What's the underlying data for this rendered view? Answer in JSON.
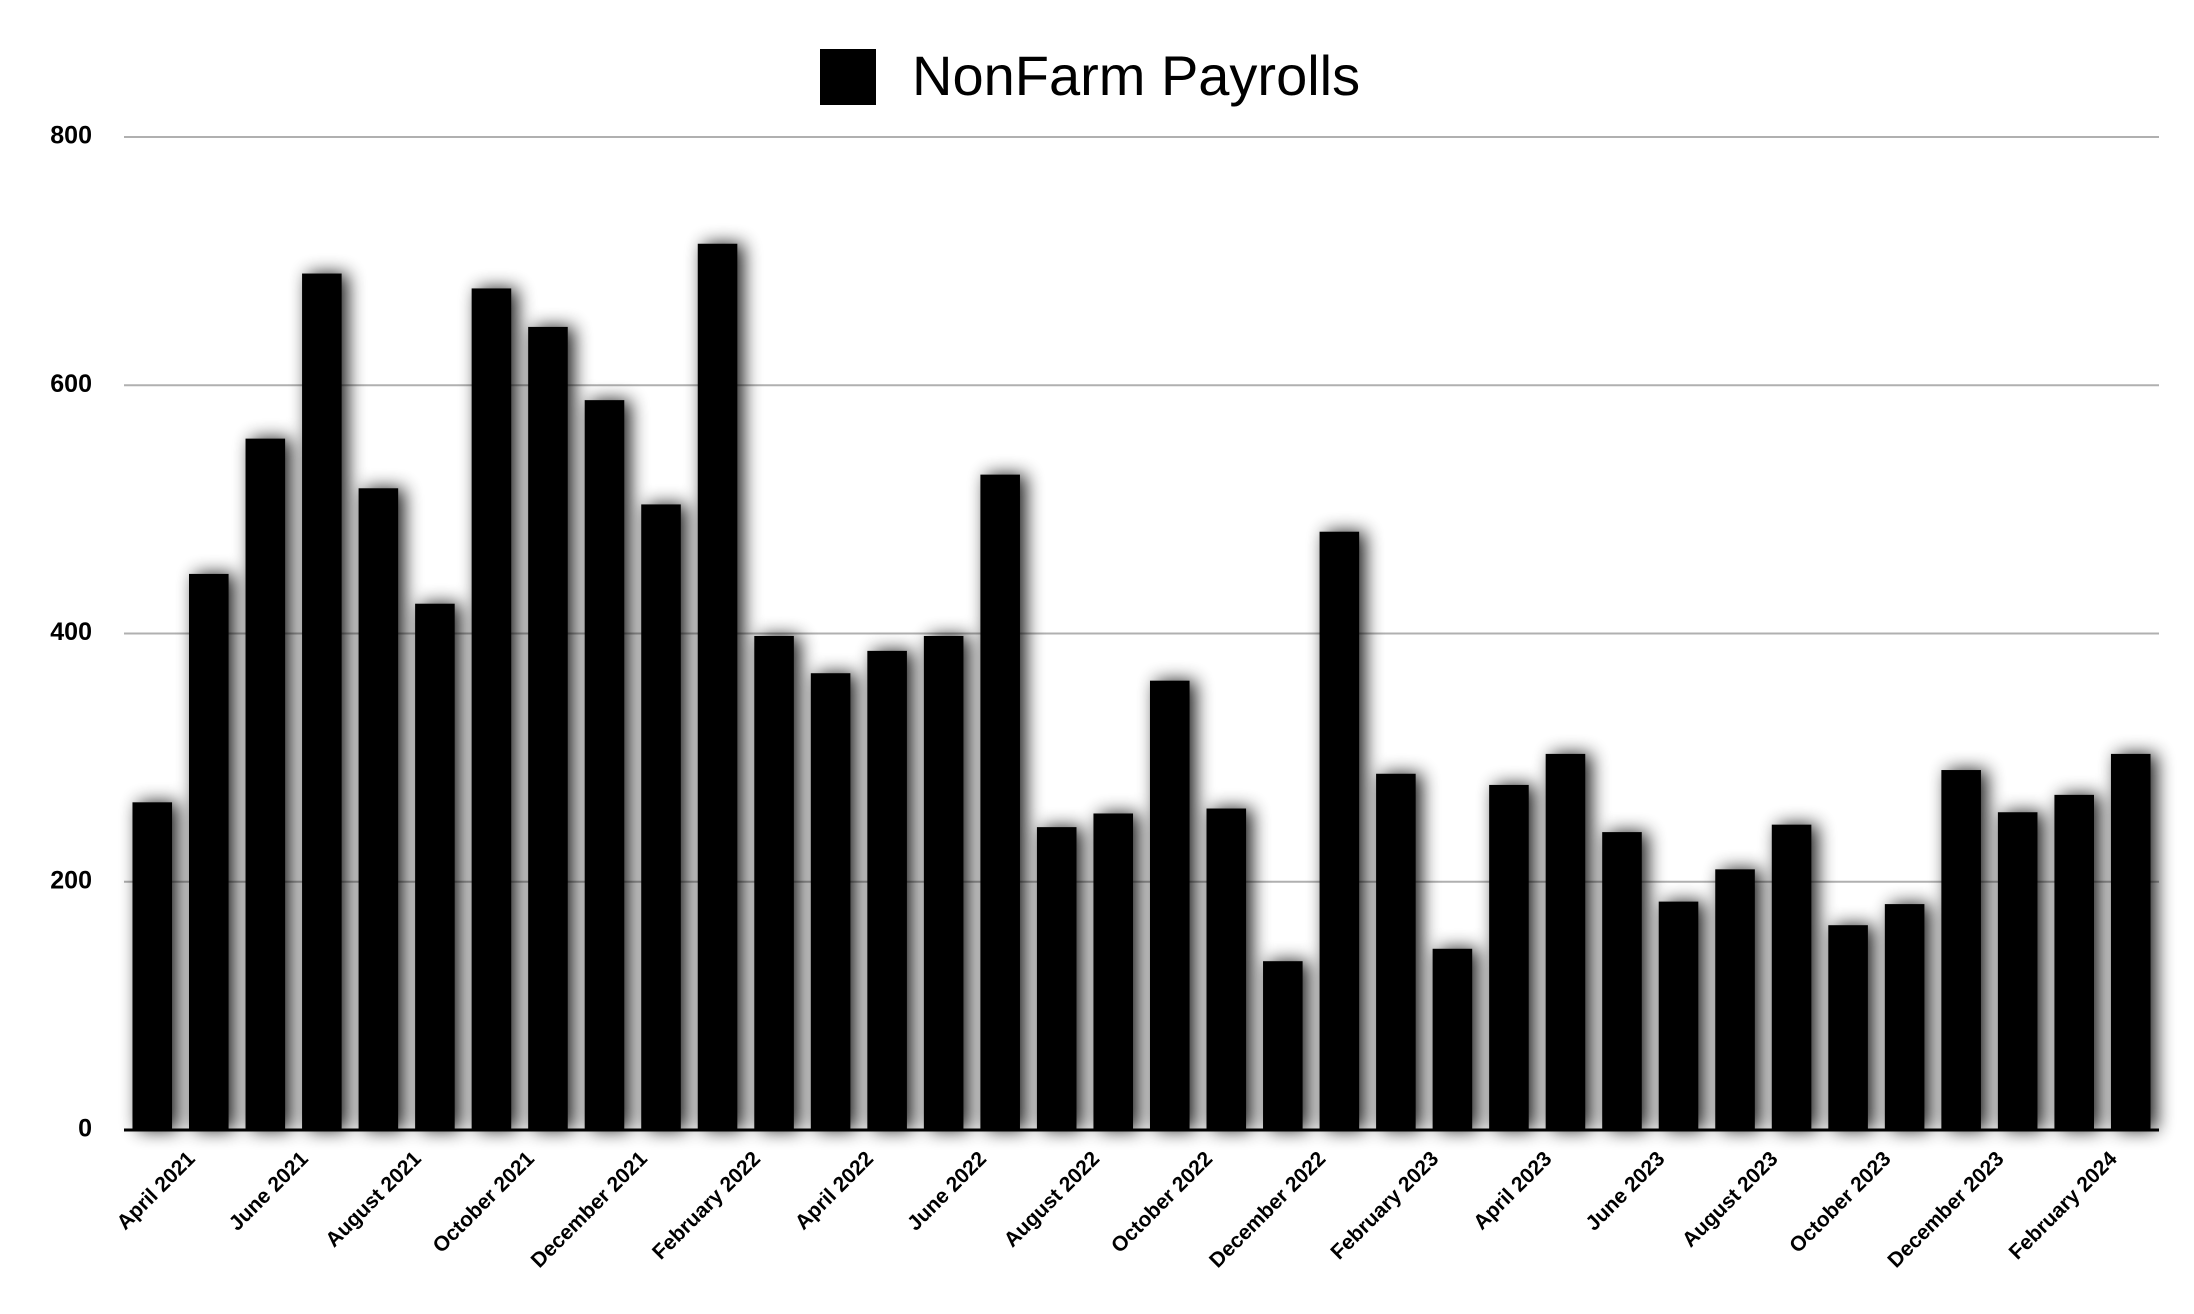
{
  "chart_data": {
    "type": "bar",
    "categories": [
      "April 2021",
      null,
      "June 2021",
      null,
      "August 2021",
      null,
      "October 2021",
      null,
      "December 2021",
      null,
      "February 2022",
      null,
      "April 2022",
      null,
      "June 2022",
      null,
      "August 2022",
      null,
      "October 2022",
      null,
      "December 2022",
      null,
      "February 2023",
      null,
      "April 2023",
      null,
      "June 2023",
      null,
      "August 2023",
      null,
      "October 2023",
      null,
      "December 2023",
      null,
      "February 2024",
      null
    ],
    "series": [
      {
        "name": "NonFarm Payrolls",
        "color": "#000000",
        "values": [
          264,
          448,
          557,
          690,
          517,
          424,
          678,
          647,
          588,
          504,
          714,
          398,
          368,
          386,
          398,
          528,
          244,
          255,
          362,
          259,
          136,
          482,
          287,
          146,
          278,
          303,
          240,
          184,
          210,
          246,
          165,
          182,
          290,
          256,
          270,
          303
        ]
      }
    ],
    "ylim": [
      0,
      800
    ],
    "yticks": [
      0,
      200,
      400,
      600,
      800
    ],
    "grid": true,
    "legend": "top"
  }
}
